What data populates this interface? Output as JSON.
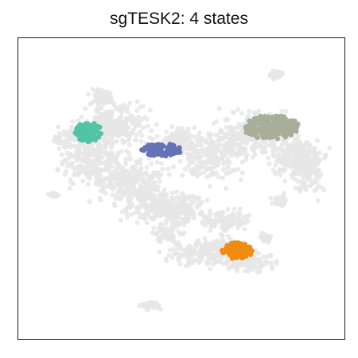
{
  "chart_data": {
    "type": "scatter",
    "title": "sgTESK2: 4 states",
    "xlabel": "",
    "ylabel": "",
    "grid": false,
    "legend": "none",
    "axes_ticks": "none",
    "background_color": "#e6e6e6",
    "series": [
      {
        "color": "#52c3a4",
        "approx_region": "left cluster"
      },
      {
        "color": "#6672b8",
        "approx_region": "center cluster"
      },
      {
        "color": "#a8ae99",
        "approx_region": "upper-right cluster"
      },
      {
        "color": "#ef8c0f",
        "approx_region": "lower-right cluster"
      }
    ]
  }
}
